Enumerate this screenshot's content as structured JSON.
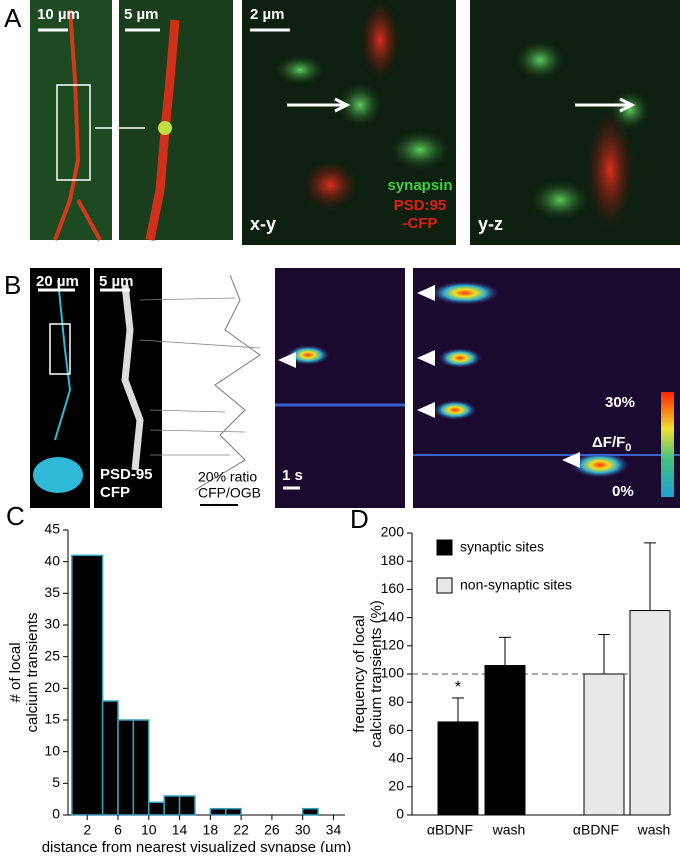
{
  "panel_a": {
    "label": "A",
    "scale_bars": [
      "10 µm",
      "5 µm",
      "2 µm"
    ],
    "legend": [
      "synapsin",
      "PSD:95",
      "-CFP"
    ],
    "views": [
      "x-y",
      "y-z"
    ]
  },
  "panel_b": {
    "label": "B",
    "scale_bars": [
      "20 µm",
      "5 µm"
    ],
    "marker": [
      "PSD-95",
      "CFP"
    ],
    "ratio": [
      "20% ratio",
      "CFP/OGB"
    ],
    "time_bar": "1 s",
    "colorbar": {
      "max": "30%",
      "label": "ΔF/F",
      "sub": "0",
      "min": "0%"
    }
  },
  "chart_data": [
    {
      "type": "histogram",
      "label": "C",
      "ylabel": [
        "# of local",
        "calcium transients"
      ],
      "xlabel": "distance from nearest visualized synapse (µm)",
      "bins": [
        0,
        4,
        6,
        8,
        10,
        12,
        14,
        16,
        18,
        20,
        22,
        24,
        26,
        28,
        30,
        32,
        34
      ],
      "counts": [
        41,
        18,
        15,
        15,
        2,
        3,
        3,
        0,
        1,
        1,
        0,
        0,
        0,
        0,
        1,
        0
      ],
      "color": "#000000",
      "edgecolor": "#3aa0c0",
      "xlim": [
        -0.5,
        35.5
      ],
      "xticks": [
        2,
        6,
        10,
        14,
        18,
        22,
        26,
        30,
        34
      ],
      "ylim": [
        0,
        45
      ],
      "yticks": [
        0,
        5,
        10,
        15,
        20,
        25,
        30,
        35,
        40,
        45
      ]
    },
    {
      "type": "bar",
      "label": "D",
      "ylabel": [
        "frequency of local",
        "calcium transients (%)"
      ],
      "categories": [
        "αBDNF",
        "wash",
        "αBDNF",
        "wash"
      ],
      "series": [
        {
          "name": "synaptic sites",
          "color": "#000000",
          "values": [
            66,
            106,
            null,
            null
          ],
          "errors": [
            17,
            20,
            null,
            null
          ]
        },
        {
          "name": "non-synaptic sites",
          "color": "#e8e8e8",
          "values": [
            null,
            null,
            100,
            145
          ],
          "errors": [
            null,
            null,
            28,
            48
          ]
        }
      ],
      "annotation": "*",
      "hline": 100,
      "ylim": [
        0,
        200
      ],
      "yticks": [
        0,
        20,
        40,
        60,
        80,
        100,
        120,
        140,
        160,
        180,
        200
      ]
    }
  ]
}
